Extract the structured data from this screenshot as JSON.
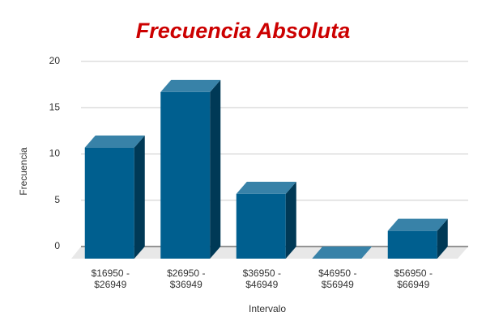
{
  "chart_data": {
    "type": "bar3d",
    "title": "Frecuencia Absoluta",
    "x_label": "Intervalo",
    "y_label": "Frecuencia",
    "categories": [
      [
        "$16950 -",
        "$26949"
      ],
      [
        "$26950 -",
        "$36949"
      ],
      [
        "$36950 -",
        "$46949"
      ],
      [
        "$46950 -",
        "$56949"
      ],
      [
        "$56950 -",
        "$66949"
      ]
    ],
    "values": [
      12,
      18,
      7,
      0,
      3
    ],
    "color": "#005f8f",
    "ylim": [
      0,
      20
    ],
    "yticks": [
      0,
      5,
      10,
      15,
      20
    ],
    "grid": true
  }
}
